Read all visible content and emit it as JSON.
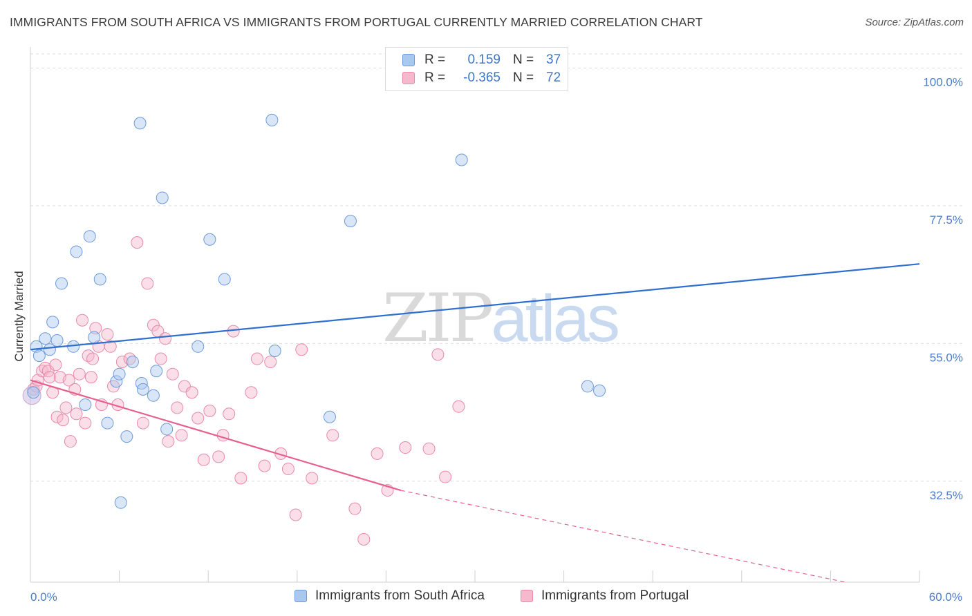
{
  "header": {
    "title": "IMMIGRANTS FROM SOUTH AFRICA VS IMMIGRANTS FROM PORTUGAL CURRENTLY MARRIED CORRELATION CHART",
    "source": "Source: ZipAtlas.com"
  },
  "watermark": {
    "zip": "ZIP",
    "atlas": "atlas"
  },
  "legend": {
    "r_label": "R =",
    "n_label": "N =",
    "rows": [
      {
        "r": "0.159",
        "n": "37",
        "color": "#a9c8f0"
      },
      {
        "r": "-0.365",
        "n": "72",
        "color": "#f5b8cc"
      }
    ]
  },
  "bottom_legend": {
    "south_africa": "Immigrants from South Africa",
    "portugal": "Immigrants from Portugal"
  },
  "chart_data": {
    "type": "scatter",
    "ylabel": "Currently Married",
    "xlim": [
      0,
      60
    ],
    "ylim": [
      16,
      103
    ],
    "x_tick_labels": [
      "0.0%",
      "60.0%"
    ],
    "y_ticks": [
      {
        "value": 100.0,
        "label": "100.0%"
      },
      {
        "value": 77.5,
        "label": "77.5%"
      },
      {
        "value": 55.0,
        "label": "55.0%"
      },
      {
        "value": 32.5,
        "label": "32.5%"
      }
    ],
    "grid": true,
    "colors": {
      "south_africa_fill": "#a9c8f0",
      "south_africa_stroke": "#6c9ad8",
      "south_africa_line": "#2f6fcf",
      "portugal_fill": "#f5b8cc",
      "portugal_stroke": "#e889a8",
      "portugal_line": "#e5608f"
    },
    "series": [
      {
        "name": "Immigrants from South Africa",
        "points": [
          [
            0.2,
            47.0
          ],
          [
            0.4,
            54.5
          ],
          [
            0.6,
            53.0
          ],
          [
            1.0,
            55.8
          ],
          [
            1.3,
            54.0
          ],
          [
            1.5,
            58.5
          ],
          [
            1.8,
            55.5
          ],
          [
            2.1,
            64.8
          ],
          [
            2.9,
            54.5
          ],
          [
            3.1,
            70.0
          ],
          [
            3.7,
            45.0
          ],
          [
            4.0,
            72.5
          ],
          [
            4.3,
            56.0
          ],
          [
            4.7,
            65.5
          ],
          [
            5.2,
            42.0
          ],
          [
            5.8,
            48.8
          ],
          [
            6.0,
            50.0
          ],
          [
            6.1,
            29.0
          ],
          [
            6.5,
            39.8
          ],
          [
            6.9,
            52.0
          ],
          [
            7.4,
            91.0
          ],
          [
            7.5,
            48.5
          ],
          [
            7.6,
            47.5
          ],
          [
            8.3,
            46.5
          ],
          [
            8.5,
            50.5
          ],
          [
            8.9,
            78.8
          ],
          [
            9.2,
            41.0
          ],
          [
            11.3,
            54.5
          ],
          [
            12.1,
            72.0
          ],
          [
            13.1,
            65.5
          ],
          [
            16.3,
            91.5
          ],
          [
            16.5,
            53.8
          ],
          [
            20.2,
            43.0
          ],
          [
            21.6,
            75.0
          ],
          [
            29.1,
            85.0
          ],
          [
            37.6,
            48.0
          ],
          [
            38.4,
            47.3
          ]
        ]
      },
      {
        "name": "Immigrants from Portugal",
        "points": [
          [
            0.2,
            47.5
          ],
          [
            0.4,
            48.0
          ],
          [
            0.5,
            49.0
          ],
          [
            0.8,
            50.5
          ],
          [
            1.0,
            51.0
          ],
          [
            1.2,
            50.5
          ],
          [
            1.3,
            49.5
          ],
          [
            1.5,
            47.0
          ],
          [
            1.7,
            51.5
          ],
          [
            1.8,
            43.0
          ],
          [
            2.0,
            49.5
          ],
          [
            2.2,
            42.5
          ],
          [
            2.4,
            44.5
          ],
          [
            2.6,
            49.0
          ],
          [
            2.7,
            39.0
          ],
          [
            3.0,
            47.5
          ],
          [
            3.1,
            43.5
          ],
          [
            3.3,
            50.0
          ],
          [
            3.5,
            58.8
          ],
          [
            3.7,
            42.0
          ],
          [
            3.9,
            53.0
          ],
          [
            4.1,
            49.5
          ],
          [
            4.2,
            52.5
          ],
          [
            4.4,
            57.5
          ],
          [
            4.6,
            54.5
          ],
          [
            4.8,
            45.0
          ],
          [
            5.2,
            56.5
          ],
          [
            5.4,
            54.5
          ],
          [
            5.6,
            48.0
          ],
          [
            5.9,
            45.0
          ],
          [
            6.2,
            52.0
          ],
          [
            6.7,
            52.5
          ],
          [
            7.2,
            71.5
          ],
          [
            7.6,
            42.0
          ],
          [
            7.9,
            64.8
          ],
          [
            8.3,
            58.0
          ],
          [
            8.6,
            57.0
          ],
          [
            8.8,
            52.5
          ],
          [
            9.1,
            55.8
          ],
          [
            9.3,
            39.0
          ],
          [
            9.6,
            50.0
          ],
          [
            9.9,
            44.5
          ],
          [
            10.2,
            40.0
          ],
          [
            10.4,
            48.0
          ],
          [
            10.9,
            47.0
          ],
          [
            11.3,
            42.8
          ],
          [
            11.7,
            36.0
          ],
          [
            12.1,
            44.0
          ],
          [
            12.7,
            36.5
          ],
          [
            13.0,
            40.0
          ],
          [
            13.4,
            43.5
          ],
          [
            13.7,
            57.0
          ],
          [
            14.2,
            33.0
          ],
          [
            14.9,
            47.0
          ],
          [
            15.3,
            52.5
          ],
          [
            15.8,
            35.0
          ],
          [
            16.2,
            52.0
          ],
          [
            16.9,
            37.0
          ],
          [
            17.4,
            34.5
          ],
          [
            17.9,
            27.0
          ],
          [
            18.3,
            54.0
          ],
          [
            19.0,
            33.0
          ],
          [
            20.4,
            40.0
          ],
          [
            21.9,
            28.0
          ],
          [
            22.5,
            23.0
          ],
          [
            23.4,
            37.0
          ],
          [
            24.1,
            31.0
          ],
          [
            25.3,
            38.0
          ],
          [
            26.9,
            37.8
          ],
          [
            27.5,
            53.2
          ],
          [
            28.0,
            33.2
          ],
          [
            28.9,
            44.7
          ]
        ]
      }
    ],
    "trend_lines": [
      {
        "series": "Immigrants from South Africa",
        "x": [
          0,
          60
        ],
        "y": [
          54.0,
          68.0
        ]
      },
      {
        "series": "Immigrants from Portugal",
        "x": [
          0,
          25
        ],
        "y": [
          49.0,
          31.0
        ],
        "dashed_to": [
          55,
          16
        ]
      }
    ]
  }
}
